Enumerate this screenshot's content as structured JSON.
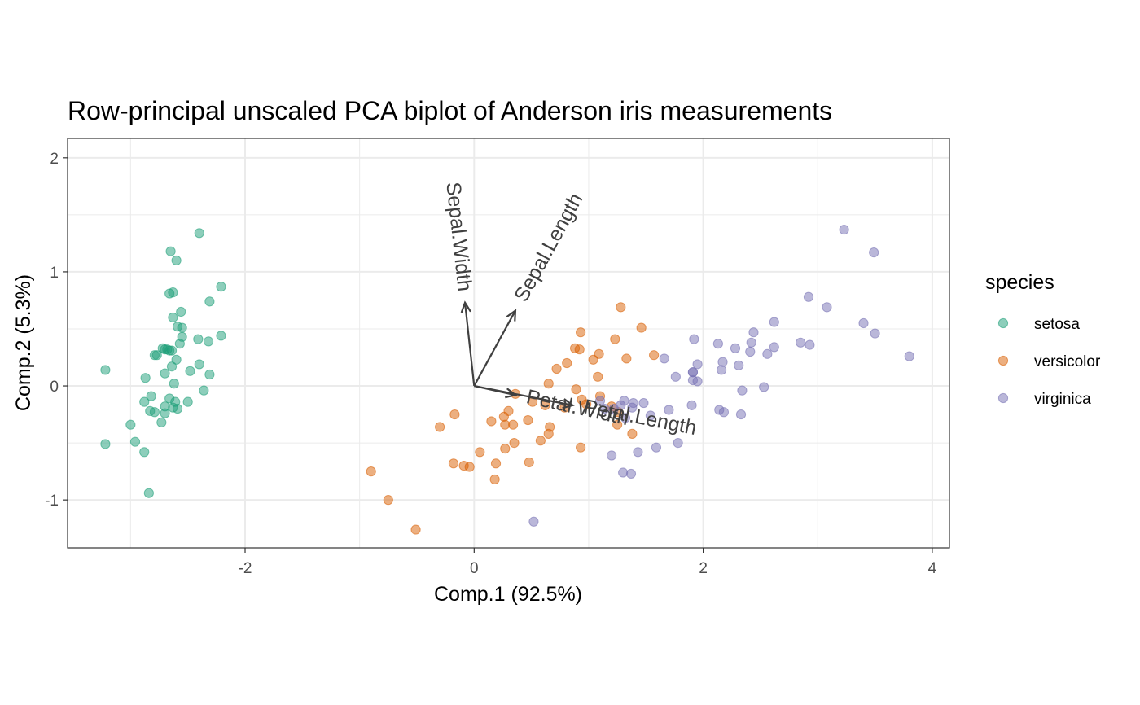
{
  "chart_data": {
    "type": "scatter",
    "title": "Row-principal unscaled PCA biplot of Anderson iris measurements",
    "xlabel": "Comp.1 (92.5%)",
    "ylabel": "Comp.2 (5.3%)",
    "xlim": [
      -3.55,
      4.15
    ],
    "ylim": [
      -1.42,
      2.17
    ],
    "x_ticks": [
      -2,
      0,
      2,
      4
    ],
    "y_ticks": [
      -1,
      0,
      1,
      2
    ],
    "x_tick_labels": [
      "-2",
      "0",
      "2",
      "4"
    ],
    "y_tick_labels": [
      "-1",
      "0",
      "1",
      "2"
    ],
    "grid": true,
    "legend": {
      "title": "species",
      "position": "right"
    },
    "colors": {
      "setosa": "#1b9e77",
      "versicolor": "#d95f02",
      "virginica": "#7570b3",
      "vector": "#404040"
    },
    "series": [
      {
        "name": "setosa",
        "points": [
          [
            -3.22,
            0.14
          ],
          [
            -2.4,
            1.34
          ],
          [
            -2.65,
            1.18
          ],
          [
            -2.6,
            1.1
          ],
          [
            -2.21,
            0.87
          ],
          [
            -2.63,
            0.82
          ],
          [
            -2.66,
            0.81
          ],
          [
            -2.31,
            0.74
          ],
          [
            -2.56,
            0.65
          ],
          [
            -2.63,
            0.6
          ],
          [
            -2.59,
            0.52
          ],
          [
            -2.55,
            0.51
          ],
          [
            -2.21,
            0.44
          ],
          [
            -2.55,
            0.43
          ],
          [
            -2.41,
            0.41
          ],
          [
            -2.32,
            0.39
          ],
          [
            -2.57,
            0.37
          ],
          [
            -2.72,
            0.33
          ],
          [
            -2.66,
            0.31
          ],
          [
            -2.68,
            0.32
          ],
          [
            -2.64,
            0.31
          ],
          [
            -2.7,
            0.32
          ],
          [
            -2.79,
            0.27
          ],
          [
            -2.77,
            0.27
          ],
          [
            -2.6,
            0.23
          ],
          [
            -2.4,
            0.19
          ],
          [
            -2.64,
            0.17
          ],
          [
            -2.48,
            0.13
          ],
          [
            -2.7,
            0.11
          ],
          [
            -2.31,
            0.1
          ],
          [
            -2.87,
            0.07
          ],
          [
            -2.62,
            0.02
          ],
          [
            -2.36,
            -0.04
          ],
          [
            -2.82,
            -0.09
          ],
          [
            -2.66,
            -0.11
          ],
          [
            -2.88,
            -0.14
          ],
          [
            -2.61,
            -0.14
          ],
          [
            -2.5,
            -0.14
          ],
          [
            -2.7,
            -0.18
          ],
          [
            -2.63,
            -0.19
          ],
          [
            -2.59,
            -0.2
          ],
          [
            -2.83,
            -0.22
          ],
          [
            -2.79,
            -0.23
          ],
          [
            -2.7,
            -0.24
          ],
          [
            -2.73,
            -0.32
          ],
          [
            -3.0,
            -0.34
          ],
          [
            -2.96,
            -0.49
          ],
          [
            -3.22,
            -0.51
          ],
          [
            -2.88,
            -0.58
          ],
          [
            -2.84,
            -0.94
          ]
        ]
      },
      {
        "name": "versicolor",
        "points": [
          [
            1.28,
            0.69
          ],
          [
            1.46,
            0.51
          ],
          [
            0.93,
            0.47
          ],
          [
            1.23,
            0.41
          ],
          [
            0.88,
            0.33
          ],
          [
            0.92,
            0.32
          ],
          [
            1.09,
            0.28
          ],
          [
            1.57,
            0.27
          ],
          [
            1.33,
            0.24
          ],
          [
            1.04,
            0.23
          ],
          [
            0.81,
            0.2
          ],
          [
            0.72,
            0.15
          ],
          [
            1.08,
            0.08
          ],
          [
            0.65,
            0.02
          ],
          [
            0.89,
            -0.03
          ],
          [
            0.36,
            -0.07
          ],
          [
            0.94,
            -0.12
          ],
          [
            1.1,
            -0.09
          ],
          [
            0.51,
            -0.14
          ],
          [
            0.62,
            -0.17
          ],
          [
            0.98,
            -0.16
          ],
          [
            0.3,
            -0.22
          ],
          [
            0.79,
            -0.19
          ],
          [
            1.2,
            -0.18
          ],
          [
            1.26,
            -0.23
          ],
          [
            -0.17,
            -0.25
          ],
          [
            0.26,
            -0.27
          ],
          [
            0.47,
            -0.3
          ],
          [
            0.15,
            -0.31
          ],
          [
            0.34,
            -0.34
          ],
          [
            0.27,
            -0.34
          ],
          [
            1.25,
            -0.34
          ],
          [
            0.66,
            -0.36
          ],
          [
            -0.3,
            -0.36
          ],
          [
            1.38,
            -0.42
          ],
          [
            0.65,
            -0.42
          ],
          [
            0.35,
            -0.5
          ],
          [
            0.58,
            -0.48
          ],
          [
            0.93,
            -0.54
          ],
          [
            0.27,
            -0.55
          ],
          [
            0.05,
            -0.58
          ],
          [
            0.19,
            -0.68
          ],
          [
            -0.18,
            -0.68
          ],
          [
            -0.09,
            -0.7
          ],
          [
            0.48,
            -0.67
          ],
          [
            -0.04,
            -0.71
          ],
          [
            0.18,
            -0.82
          ],
          [
            -0.9,
            -0.75
          ],
          [
            -0.75,
            -1.0
          ],
          [
            -0.51,
            -1.26
          ]
        ]
      },
      {
        "name": "virginica",
        "points": [
          [
            3.23,
            1.37
          ],
          [
            3.49,
            1.17
          ],
          [
            2.92,
            0.78
          ],
          [
            3.08,
            0.69
          ],
          [
            2.62,
            0.56
          ],
          [
            3.4,
            0.55
          ],
          [
            2.44,
            0.47
          ],
          [
            3.5,
            0.46
          ],
          [
            1.92,
            0.41
          ],
          [
            2.42,
            0.38
          ],
          [
            2.85,
            0.38
          ],
          [
            2.93,
            0.36
          ],
          [
            2.13,
            0.37
          ],
          [
            2.62,
            0.34
          ],
          [
            2.28,
            0.33
          ],
          [
            2.41,
            0.3
          ],
          [
            2.56,
            0.28
          ],
          [
            1.66,
            0.24
          ],
          [
            3.8,
            0.26
          ],
          [
            2.17,
            0.21
          ],
          [
            1.95,
            0.19
          ],
          [
            2.31,
            0.18
          ],
          [
            2.16,
            0.14
          ],
          [
            1.91,
            0.12
          ],
          [
            1.91,
            0.12
          ],
          [
            1.76,
            0.08
          ],
          [
            1.91,
            0.05
          ],
          [
            1.95,
            0.04
          ],
          [
            2.53,
            -0.01
          ],
          [
            2.34,
            -0.04
          ],
          [
            1.1,
            -0.13
          ],
          [
            1.31,
            -0.13
          ],
          [
            1.39,
            -0.15
          ],
          [
            1.48,
            -0.15
          ],
          [
            1.28,
            -0.17
          ],
          [
            1.9,
            -0.17
          ],
          [
            1.38,
            -0.19
          ],
          [
            1.22,
            -0.2
          ],
          [
            1.14,
            -0.2
          ],
          [
            2.14,
            -0.21
          ],
          [
            1.7,
            -0.21
          ],
          [
            2.18,
            -0.23
          ],
          [
            1.54,
            -0.26
          ],
          [
            2.33,
            -0.25
          ],
          [
            1.32,
            -0.28
          ],
          [
            1.78,
            -0.5
          ],
          [
            1.59,
            -0.54
          ],
          [
            1.43,
            -0.58
          ],
          [
            1.2,
            -0.61
          ],
          [
            1.3,
            -0.76
          ],
          [
            1.37,
            -0.77
          ],
          [
            0.52,
            -1.19
          ]
        ]
      }
    ],
    "vectors": [
      {
        "name": "Sepal.Length",
        "x": 0.36,
        "y": 0.66
      },
      {
        "name": "Sepal.Width",
        "x": -0.08,
        "y": 0.73
      },
      {
        "name": "Petal.Length",
        "x": 0.86,
        "y": -0.17
      },
      {
        "name": "Petal.Width",
        "x": 0.36,
        "y": -0.08
      }
    ]
  }
}
